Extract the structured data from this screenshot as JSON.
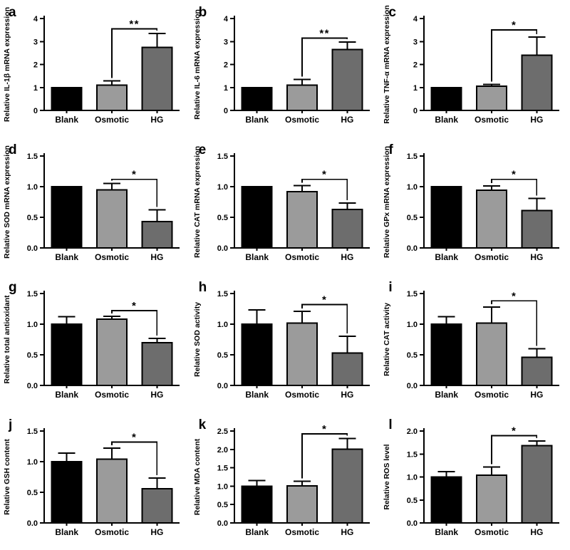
{
  "style": {
    "background": "#ffffff",
    "axis_color": "#000000",
    "bar_colors": [
      "#000000",
      "#9b9b9b",
      "#6d6d6d"
    ]
  },
  "chart_data": [
    {
      "type": "bar",
      "panel": "a",
      "ylabel": "Relative IL-1β mRNA expression",
      "categories": [
        "Blank",
        "Osmotic",
        "HG"
      ],
      "values": [
        1.0,
        1.1,
        2.75
      ],
      "errors": [
        0,
        0.18,
        0.6
      ],
      "ylim": [
        0,
        4
      ],
      "yticks": [
        0,
        1,
        2,
        3,
        4
      ],
      "ytick_labels": [
        "0",
        "1",
        "2",
        "3",
        "4"
      ],
      "grid": false,
      "legend": "none",
      "significance": {
        "label": "**",
        "from": "Osmotic",
        "to": "HG",
        "bar_y": 3.55
      }
    },
    {
      "type": "bar",
      "panel": "b",
      "ylabel": "Relative IL-6 mRNA expression",
      "categories": [
        "Blank",
        "Osmotic",
        "HG"
      ],
      "values": [
        1.0,
        1.1,
        2.65
      ],
      "errors": [
        0,
        0.25,
        0.32
      ],
      "ylim": [
        0,
        4
      ],
      "yticks": [
        0,
        1,
        2,
        3,
        4
      ],
      "ytick_labels": [
        "0",
        "1",
        "2",
        "3",
        "4"
      ],
      "grid": false,
      "legend": "none",
      "significance": {
        "label": "**",
        "from": "Osmotic",
        "to": "HG",
        "bar_y": 3.15
      }
    },
    {
      "type": "bar",
      "panel": "c",
      "ylabel": "Relative TNF-α mRNA expression",
      "categories": [
        "Blank",
        "Osmotic",
        "HG"
      ],
      "values": [
        1.0,
        1.05,
        2.4
      ],
      "errors": [
        0,
        0.08,
        0.8
      ],
      "ylim": [
        0,
        4
      ],
      "yticks": [
        0,
        1,
        2,
        3,
        4
      ],
      "ytick_labels": [
        "0",
        "1",
        "2",
        "3",
        "4"
      ],
      "grid": false,
      "legend": "none",
      "significance": {
        "label": "*",
        "from": "Osmotic",
        "to": "HG",
        "bar_y": 3.5
      }
    },
    {
      "type": "bar",
      "panel": "d",
      "ylabel": "Relative SOD mRNA expression",
      "categories": [
        "Blank",
        "Osmotic",
        "HG"
      ],
      "values": [
        1.0,
        0.95,
        0.43
      ],
      "errors": [
        0,
        0.1,
        0.19
      ],
      "ylim": [
        0,
        1.5
      ],
      "yticks": [
        0,
        0.5,
        1.0,
        1.5
      ],
      "ytick_labels": [
        "0.0",
        "0.5",
        "1.0",
        "1.5"
      ],
      "grid": false,
      "legend": "none",
      "significance": {
        "label": "*",
        "from": "Osmotic",
        "to": "HG",
        "bar_y": 1.12
      }
    },
    {
      "type": "bar",
      "panel": "e",
      "ylabel": "Relative CAT mRNA expression",
      "categories": [
        "Blank",
        "Osmotic",
        "HG"
      ],
      "values": [
        1.0,
        0.92,
        0.63
      ],
      "errors": [
        0,
        0.1,
        0.1
      ],
      "ylim": [
        0,
        1.5
      ],
      "yticks": [
        0,
        0.5,
        1.0,
        1.5
      ],
      "ytick_labels": [
        "0.0",
        "0.5",
        "1.0",
        "1.5"
      ],
      "grid": false,
      "legend": "none",
      "significance": {
        "label": "*",
        "from": "Osmotic",
        "to": "HG",
        "bar_y": 1.12
      }
    },
    {
      "type": "bar",
      "panel": "f",
      "ylabel": "Relative GPx mRNA expression",
      "categories": [
        "Blank",
        "Osmotic",
        "HG"
      ],
      "values": [
        1.0,
        0.94,
        0.61
      ],
      "errors": [
        0,
        0.07,
        0.2
      ],
      "ylim": [
        0,
        1.5
      ],
      "yticks": [
        0,
        0.5,
        1.0,
        1.5
      ],
      "ytick_labels": [
        "0.0",
        "0.5",
        "1.0",
        "1.5"
      ],
      "grid": false,
      "legend": "none",
      "significance": {
        "label": "*",
        "from": "Osmotic",
        "to": "HG",
        "bar_y": 1.12
      }
    },
    {
      "type": "bar",
      "panel": "g",
      "ylabel": "Relative total antioxidant",
      "categories": [
        "Blank",
        "Osmotic",
        "HG"
      ],
      "values": [
        1.0,
        1.08,
        0.7
      ],
      "errors": [
        0.12,
        0.05,
        0.07
      ],
      "ylim": [
        0,
        1.5
      ],
      "yticks": [
        0,
        0.5,
        1.0,
        1.5
      ],
      "ytick_labels": [
        "0.0",
        "0.5",
        "1.0",
        "1.5"
      ],
      "grid": false,
      "legend": "none",
      "significance": {
        "label": "*",
        "from": "Osmotic",
        "to": "HG",
        "bar_y": 1.22
      }
    },
    {
      "type": "bar",
      "panel": "h",
      "ylabel": "Relative SOD activity",
      "categories": [
        "Blank",
        "Osmotic",
        "HG"
      ],
      "values": [
        1.0,
        1.02,
        0.53
      ],
      "errors": [
        0.23,
        0.19,
        0.27
      ],
      "ylim": [
        0,
        1.5
      ],
      "yticks": [
        0,
        0.5,
        1.0,
        1.5
      ],
      "ytick_labels": [
        "0.0",
        "0.5",
        "1.0",
        "1.5"
      ],
      "grid": false,
      "legend": "none",
      "significance": {
        "label": "*",
        "from": "Osmotic",
        "to": "HG",
        "bar_y": 1.32
      }
    },
    {
      "type": "bar",
      "panel": "i",
      "ylabel": "Relative CAT activity",
      "categories": [
        "Blank",
        "Osmotic",
        "HG"
      ],
      "values": [
        1.0,
        1.02,
        0.46
      ],
      "errors": [
        0.12,
        0.26,
        0.14
      ],
      "ylim": [
        0,
        1.5
      ],
      "yticks": [
        0,
        0.5,
        1.0,
        1.5
      ],
      "ytick_labels": [
        "0.0",
        "0.5",
        "1.0",
        "1.5"
      ],
      "grid": false,
      "legend": "none",
      "significance": {
        "label": "*",
        "from": "Osmotic",
        "to": "HG",
        "bar_y": 1.38
      }
    },
    {
      "type": "bar",
      "panel": "j",
      "ylabel": "Relative GSH content",
      "categories": [
        "Blank",
        "Osmotic",
        "HG"
      ],
      "values": [
        1.0,
        1.04,
        0.56
      ],
      "errors": [
        0.14,
        0.18,
        0.17
      ],
      "ylim": [
        0,
        1.5
      ],
      "yticks": [
        0,
        0.5,
        1.0,
        1.5
      ],
      "ytick_labels": [
        "0.0",
        "0.5",
        "1.0",
        "1.5"
      ],
      "grid": false,
      "legend": "none",
      "significance": {
        "label": "*",
        "from": "Osmotic",
        "to": "HG",
        "bar_y": 1.32
      }
    },
    {
      "type": "bar",
      "panel": "k",
      "ylabel": "Relative MDA content",
      "categories": [
        "Blank",
        "Osmotic",
        "HG"
      ],
      "values": [
        1.0,
        1.01,
        2.01
      ],
      "errors": [
        0.15,
        0.12,
        0.29
      ],
      "ylim": [
        0,
        2.5
      ],
      "yticks": [
        0,
        0.5,
        1.0,
        1.5,
        2.0,
        2.5
      ],
      "ytick_labels": [
        "0.0",
        "0.5",
        "1.0",
        "1.5",
        "2.0",
        "2.5"
      ],
      "grid": false,
      "legend": "none",
      "significance": {
        "label": "*",
        "from": "Osmotic",
        "to": "HG",
        "bar_y": 2.42
      }
    },
    {
      "type": "bar",
      "panel": "l",
      "ylabel": "Relative ROS level",
      "categories": [
        "Blank",
        "Osmotic",
        "HG"
      ],
      "values": [
        1.0,
        1.04,
        1.68
      ],
      "errors": [
        0.12,
        0.18,
        0.1
      ],
      "ylim": [
        0,
        2.0
      ],
      "yticks": [
        0,
        0.5,
        1.0,
        1.5,
        2.0
      ],
      "ytick_labels": [
        "0.0",
        "0.5",
        "1.0",
        "1.5",
        "2.0"
      ],
      "grid": false,
      "legend": "none",
      "significance": {
        "label": "*",
        "from": "Osmotic",
        "to": "HG",
        "bar_y": 1.9
      }
    }
  ]
}
